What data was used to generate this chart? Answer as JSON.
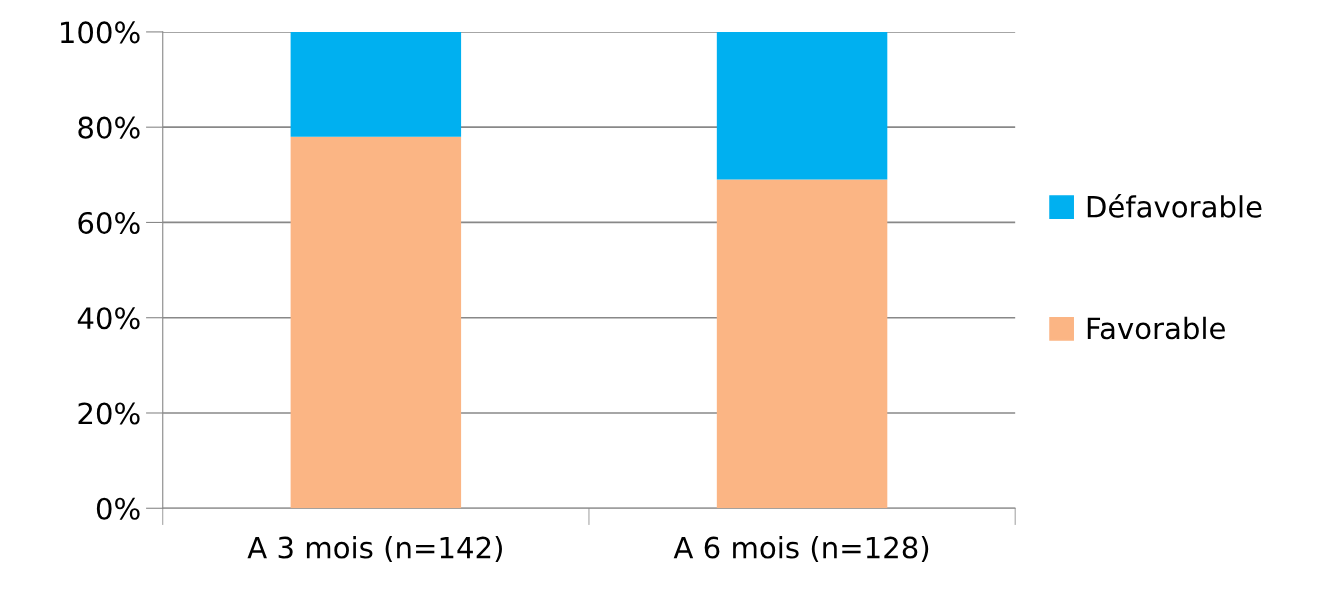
{
  "chart_data": {
    "type": "bar",
    "stacked": true,
    "categories": [
      "A 3 mois (n=142)",
      "A 6 mois (n=128)"
    ],
    "series": [
      {
        "name": "Favorable",
        "color": "#fbb584",
        "values": [
          78,
          69
        ]
      },
      {
        "name": "Défavorable",
        "color": "#00b0f0",
        "values": [
          22,
          31
        ]
      }
    ],
    "ylim": [
      0,
      100
    ],
    "yticks": [
      {
        "value": 0,
        "label": "0%"
      },
      {
        "value": 20,
        "label": "20%"
      },
      {
        "value": 40,
        "label": "40%"
      },
      {
        "value": 60,
        "label": "60%"
      },
      {
        "value": 80,
        "label": "80%"
      },
      {
        "value": 100,
        "label": "100%"
      }
    ],
    "grid": "y",
    "legend": "right"
  }
}
